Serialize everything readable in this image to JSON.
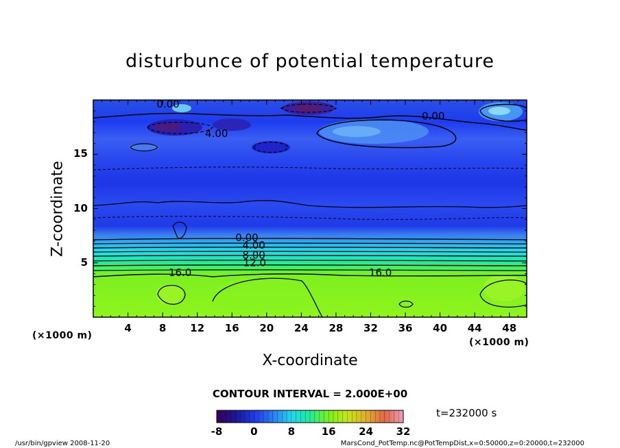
{
  "chart_data": {
    "type": "heatmap",
    "title": "disturbunce of potential temperature",
    "xlabel": "X-coordinate",
    "ylabel": "Z-coordinate",
    "x_unit": "(×1000 m)",
    "y_unit": "(×1000 m)",
    "xlim": [
      0,
      50
    ],
    "ylim": [
      0,
      20
    ],
    "x_ticks": [
      "4",
      "8",
      "12",
      "16",
      "20",
      "24",
      "28",
      "32",
      "36",
      "40",
      "44",
      "48"
    ],
    "y_ticks": [
      "5",
      "10",
      "15"
    ],
    "contour_interval_label": "CONTOUR INTERVAL = 2.000E+00",
    "contour_labels": [
      {
        "text": "0.00",
        "x": 7.3,
        "z": 19.3
      },
      {
        "text": "4.00",
        "x": 12.9,
        "z": 16.6
      },
      {
        "text": "0.00",
        "x": 37.9,
        "z": 18.2
      },
      {
        "text": "0.00",
        "x": 16.4,
        "z": 7.0
      },
      {
        "text": "4.00",
        "x": 17.2,
        "z": 6.3
      },
      {
        "text": "8.00",
        "x": 17.2,
        "z": 5.4
      },
      {
        "text": "12.0",
        "x": 17.3,
        "z": 4.7
      },
      {
        "text": "16.0",
        "x": 8.7,
        "z": 3.8
      },
      {
        "text": "16.0",
        "x": 31.8,
        "z": 3.8
      }
    ],
    "colorbar": {
      "min": -8,
      "max": 32,
      "ticks": [
        "-8",
        "0",
        "8",
        "16",
        "24",
        "32"
      ]
    },
    "time": "t=232000 s"
  },
  "footer": {
    "left": "/usr/bin/gpview   2008-11-20",
    "right": "MarsCond_PotTemp.nc@PotTempDist,x=0:50000,z=0:20000,t=232000"
  }
}
